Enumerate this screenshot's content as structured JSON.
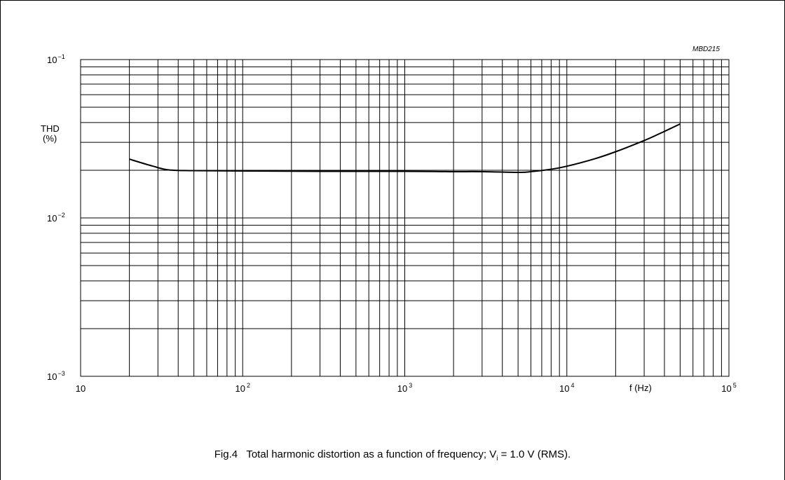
{
  "chart_data": {
    "type": "line",
    "figure_code": "MBD215",
    "x_scale": "log",
    "y_scale": "log",
    "xlim": [
      10,
      100000
    ],
    "ylim": [
      0.001,
      0.1
    ],
    "grid": true,
    "xlabel": "f  (Hz)",
    "ylabel_line1": "THD",
    "ylabel_line2": "(%)",
    "x_ticks": [
      {
        "base": "10",
        "exp": ""
      },
      {
        "base": "10",
        "exp": "2"
      },
      {
        "base": "10",
        "exp": "3"
      },
      {
        "base": "10",
        "exp": "4"
      },
      {
        "base": "10",
        "exp": "5"
      }
    ],
    "y_ticks": [
      {
        "base": "10",
        "exp": "−1"
      },
      {
        "base": "10",
        "exp": "−2"
      },
      {
        "base": "10",
        "exp": "−3"
      }
    ],
    "series": [
      {
        "x": [
          20,
          28,
          35,
          50,
          100,
          300,
          1000,
          2000,
          3000,
          5000,
          6000,
          8000,
          10000,
          15000,
          20000,
          30000,
          40000,
          50000
        ],
        "y": [
          0.0235,
          0.0212,
          0.0201,
          0.0199,
          0.0198,
          0.0197,
          0.0197,
          0.0196,
          0.0196,
          0.0194,
          0.0196,
          0.0203,
          0.0212,
          0.0237,
          0.0262,
          0.0308,
          0.0352,
          0.0392
        ]
      }
    ]
  },
  "caption": {
    "prefix": "Fig.4   Total harmonic distortion as a function of frequency; V",
    "subscript": "i",
    "suffix": " = 1.0 V (RMS)."
  }
}
